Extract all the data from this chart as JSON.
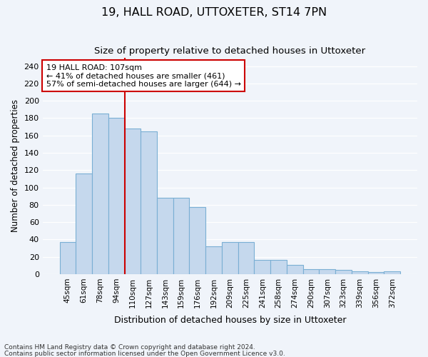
{
  "title": "19, HALL ROAD, UTTOXETER, ST14 7PN",
  "subtitle": "Size of property relative to detached houses in Uttoxeter",
  "xlabel": "Distribution of detached houses by size in Uttoxeter",
  "ylabel": "Number of detached properties",
  "bar_color": "#c5d8ed",
  "bar_edgecolor": "#7aafd4",
  "categories": [
    "45sqm",
    "61sqm",
    "78sqm",
    "94sqm",
    "110sqm",
    "127sqm",
    "143sqm",
    "159sqm",
    "176sqm",
    "192sqm",
    "209sqm",
    "225sqm",
    "241sqm",
    "258sqm",
    "274sqm",
    "290sqm",
    "307sqm",
    "323sqm",
    "339sqm",
    "356sqm",
    "372sqm"
  ],
  "values": [
    37,
    116,
    185,
    180,
    168,
    165,
    88,
    88,
    77,
    32,
    37,
    37,
    16,
    16,
    11,
    6,
    6,
    5,
    3,
    2,
    3
  ],
  "ylim": [
    0,
    250
  ],
  "yticks": [
    0,
    20,
    40,
    60,
    80,
    100,
    120,
    140,
    160,
    180,
    200,
    220,
    240
  ],
  "property_line_x": 3.5,
  "annotation_text": "19 HALL ROAD: 107sqm\n← 41% of detached houses are smaller (461)\n57% of semi-detached houses are larger (644) →",
  "annotation_box_color": "#ffffff",
  "annotation_box_edgecolor": "#cc0000",
  "footer_line1": "Contains HM Land Registry data © Crown copyright and database right 2024.",
  "footer_line2": "Contains public sector information licensed under the Open Government Licence v3.0.",
  "property_line_color": "#cc0000",
  "bg_color": "#f0f4fa",
  "plot_bg_color": "#f0f4fa"
}
